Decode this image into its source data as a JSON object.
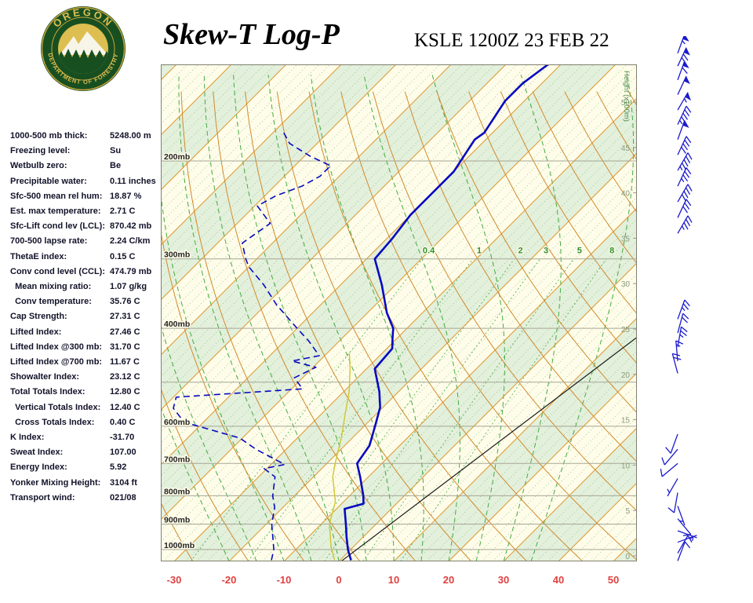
{
  "header": {
    "title": "Skew-T Log-P",
    "station_line": "KSLE 1200Z 23 FEB 22",
    "logo": {
      "top": "OREGON",
      "bottom": "DEPARTMENT OF FORESTRY"
    }
  },
  "indices": [
    {
      "label": "1000-500 mb thick:",
      "value": "5248.00 m"
    },
    {
      "label": "Freezing level:",
      "value": "Su"
    },
    {
      "label": "Wetbulb zero:",
      "value": "Be"
    },
    {
      "label": "Precipitable water:",
      "value": "0.11 inches"
    },
    {
      "label": "Sfc-500 mean rel hum:",
      "value": "18.87 %"
    },
    {
      "label": "Est. max temperature:",
      "value": "2.71 C"
    },
    {
      "label": "Sfc-Lift cond lev (LCL):",
      "value": "870.42 mb"
    },
    {
      "label": "700-500 lapse rate:",
      "value": "2.24 C/km"
    },
    {
      "label": "ThetaE index:",
      "value": "0.15 C"
    },
    {
      "label": "Conv cond level (CCL):",
      "value": "474.79 mb"
    },
    {
      "label": "  Mean mixing ratio:",
      "value": "1.07 g/kg"
    },
    {
      "label": "  Conv temperature:",
      "value": "35.76 C"
    },
    {
      "label": "Cap Strength:",
      "value": "27.31 C"
    },
    {
      "label": "Lifted Index:",
      "value": "27.46 C"
    },
    {
      "label": "Lifted Index @300 mb:",
      "value": "31.70 C"
    },
    {
      "label": "Lifted Index @700 mb:",
      "value": "11.67 C"
    },
    {
      "label": "Showalter Index:",
      "value": "23.12 C"
    },
    {
      "label": "Total Totals Index:",
      "value": "12.80 C"
    },
    {
      "label": "  Vertical Totals Index:",
      "value": "12.40 C"
    },
    {
      "label": "  Cross Totals Index:",
      "value": "0.40 C"
    },
    {
      "label": "K Index:",
      "value": "-31.70"
    },
    {
      "label": "Sweat Index:",
      "value": "107.00"
    },
    {
      "label": "Energy Index:",
      "value": "5.92"
    },
    {
      "label": "Yonker Mixing Height:",
      "value": "3104 ft"
    },
    {
      "label": "Transport wind:",
      "value": "021/08"
    }
  ],
  "chart_data": {
    "type": "line",
    "diagram": "Skew-T Log-P",
    "station": "KSLE",
    "valid": "1200Z 23 FEB 22",
    "x_ticks": [
      -30,
      -20,
      -10,
      0,
      10,
      20,
      30,
      40,
      50
    ],
    "x_units": "C",
    "pressure_gridlines": [
      1000,
      900,
      800,
      700,
      600,
      500,
      400,
      300,
      200
    ],
    "pressure_labels": [
      {
        "p": 200,
        "text": "200mb"
      },
      {
        "p": 300,
        "text": "300mb"
      },
      {
        "p": 400,
        "text": "400mb"
      },
      {
        "p": 600,
        "text": "600mb"
      },
      {
        "p": 700,
        "text": "700mb"
      },
      {
        "p": 800,
        "text": "800mb"
      },
      {
        "p": 900,
        "text": "900mb"
      },
      {
        "p": 1000,
        "text": "1000mb"
      }
    ],
    "pressure_range": [
      1050,
      134
    ],
    "height_axis": {
      "title": "Height (x100m)",
      "ticks": [
        50,
        45,
        40,
        35,
        30,
        25,
        20,
        15,
        10,
        5,
        0
      ]
    },
    "mixing_ratio_lines": [
      0.4,
      1,
      2,
      3,
      5,
      8
    ],
    "reference_line": {
      "points": [
        [
          1050,
          0.4
        ],
        [
          413,
          13.6
        ]
      ]
    },
    "series": [
      {
        "name": "wetbulb",
        "color": "#CFC52F",
        "style": "solid",
        "points": [
          [
            1045,
            -1
          ],
          [
            990,
            -4
          ],
          [
            900,
            -8.5
          ],
          [
            820,
            -11.5
          ],
          [
            740,
            -16.5
          ],
          [
            700,
            -18.5
          ],
          [
            630,
            -22
          ],
          [
            573,
            -25.5
          ],
          [
            520,
            -29
          ],
          [
            473,
            -33
          ],
          [
            443,
            -36
          ]
        ]
      },
      {
        "name": "dewpoint",
        "color": "#0909C0",
        "style": "dashed",
        "points": [
          [
            1045,
            -12.5
          ],
          [
            1000,
            -14
          ],
          [
            900,
            -19
          ],
          [
            840,
            -21.5
          ],
          [
            800,
            -24
          ],
          [
            740,
            -27
          ],
          [
            715,
            -30.5
          ],
          [
            703,
            -27.5
          ],
          [
            660,
            -35.5
          ],
          [
            630,
            -40.5
          ],
          [
            590,
            -53.5
          ],
          [
            557,
            -58
          ],
          [
            532,
            -59.5
          ],
          [
            514,
            -38
          ],
          [
            491,
            -41.5
          ],
          [
            470,
            -39.5
          ],
          [
            458,
            -45
          ],
          [
            448,
            -41
          ],
          [
            422,
            -45.5
          ],
          [
            400,
            -50
          ],
          [
            363,
            -58
          ],
          [
            334,
            -64
          ],
          [
            310,
            -70
          ],
          [
            300,
            -72
          ],
          [
            281,
            -75.5
          ],
          [
            259,
            -74
          ],
          [
            241,
            -79.5
          ],
          [
            231,
            -78
          ],
          [
            222,
            -75
          ],
          [
            213,
            -73.5
          ],
          [
            204,
            -73.5
          ],
          [
            196,
            -79
          ],
          [
            186,
            -85
          ],
          [
            178,
            -88
          ]
        ]
      },
      {
        "name": "temperature",
        "color": "#0909C0",
        "style": "solid",
        "points": [
          [
            1045,
            2
          ],
          [
            1000,
            -0.5
          ],
          [
            950,
            -3
          ],
          [
            900,
            -5.5
          ],
          [
            845,
            -8.5
          ],
          [
            827,
            -6
          ],
          [
            800,
            -7.5
          ],
          [
            740,
            -11.5
          ],
          [
            700,
            -14.5
          ],
          [
            650,
            -15.5
          ],
          [
            600,
            -18
          ],
          [
            555,
            -20.5
          ],
          [
            520,
            -23.5
          ],
          [
            473,
            -28.5
          ],
          [
            435,
            -29
          ],
          [
            415,
            -31
          ],
          [
            400,
            -32.5
          ],
          [
            375,
            -36.5
          ],
          [
            334,
            -42.5
          ],
          [
            300,
            -48.5
          ],
          [
            276,
            -49
          ],
          [
            250,
            -50
          ],
          [
            209,
            -50
          ],
          [
            183,
            -52
          ],
          [
            178,
            -51.5
          ],
          [
            156,
            -53.5
          ],
          [
            145,
            -53.5
          ],
          [
            134,
            -52.3
          ]
        ]
      }
    ],
    "winds": [
      {
        "p": 128,
        "dir": 20,
        "spd": 55
      },
      {
        "p": 135,
        "dir": 25,
        "spd": 65
      },
      {
        "p": 143,
        "dir": 20,
        "spd": 60
      },
      {
        "p": 152,
        "dir": 25,
        "spd": 50
      },
      {
        "p": 162,
        "dir": 30,
        "spd": 55
      },
      {
        "p": 172,
        "dir": 25,
        "spd": 45
      },
      {
        "p": 183,
        "dir": 20,
        "spd": 50
      },
      {
        "p": 195,
        "dir": 25,
        "spd": 40
      },
      {
        "p": 208,
        "dir": 30,
        "spd": 45
      },
      {
        "p": 222,
        "dir": 25,
        "spd": 35
      },
      {
        "p": 237,
        "dir": 30,
        "spd": 40
      },
      {
        "p": 253,
        "dir": 25,
        "spd": 30
      },
      {
        "p": 270,
        "dir": 30,
        "spd": 35
      },
      {
        "p": 385,
        "dir": 20,
        "spd": 25
      },
      {
        "p": 408,
        "dir": 15,
        "spd": 20
      },
      {
        "p": 432,
        "dir": 10,
        "spd": 25
      },
      {
        "p": 458,
        "dir": 355,
        "spd": 15
      },
      {
        "p": 482,
        "dir": 345,
        "spd": 20
      },
      {
        "p": 620,
        "dir": 200,
        "spd": 10
      },
      {
        "p": 660,
        "dir": 220,
        "spd": 8
      },
      {
        "p": 700,
        "dir": 230,
        "spd": 10
      },
      {
        "p": 745,
        "dir": 210,
        "spd": 5
      },
      {
        "p": 790,
        "dir": 190,
        "spd": 8
      },
      {
        "p": 835,
        "dir": 160,
        "spd": 5
      },
      {
        "p": 880,
        "dir": 140,
        "spd": 8
      },
      {
        "p": 925,
        "dir": 110,
        "spd": 5
      },
      {
        "p": 970,
        "dir": 70,
        "spd": 5
      },
      {
        "p": 1015,
        "dir": 30,
        "spd": 8
      },
      {
        "p": 1048,
        "dir": 21,
        "spd": 8
      }
    ]
  },
  "colors": {
    "background": "#FFFDE9",
    "band": "#E3F0DB",
    "minor": "#8FBF8F",
    "isotherm": "#DD9933",
    "adiabat": "#D08A2E",
    "moist": "#44AA44",
    "mixing_label": "#2F8F2F",
    "pressure_line": "#A6A696",
    "tick_red": "#E04040",
    "height_text": "#8A9B7E",
    "height_title": "#4A8A4A",
    "border": "#808070",
    "wind": "#1A1ACD",
    "black_line": "#1A1A1A",
    "pressure_label": "#222222"
  }
}
